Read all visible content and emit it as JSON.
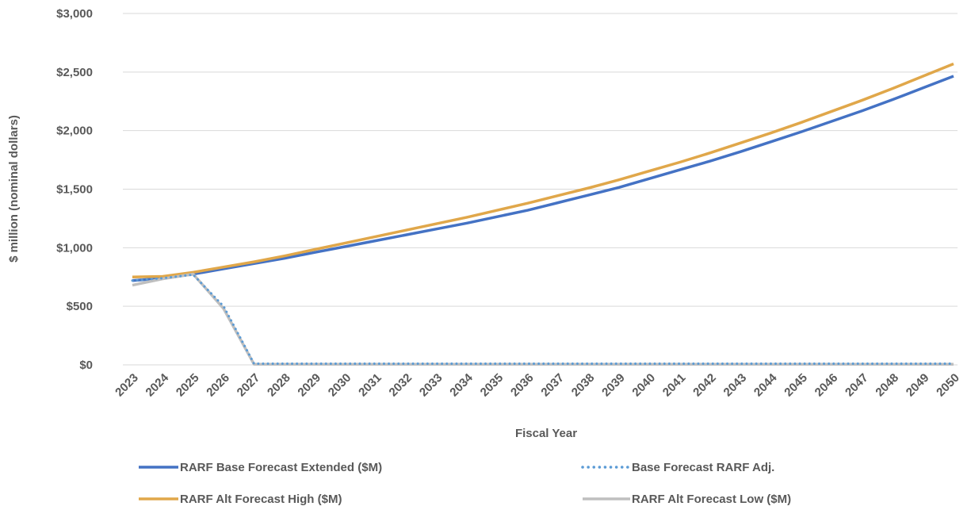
{
  "chart_data": {
    "type": "line",
    "xlabel": "Fiscal Year",
    "ylabel": "$ million (nominal dollars)",
    "ylim": [
      0,
      3000
    ],
    "yticks": [
      0,
      500,
      1000,
      1500,
      2000,
      2500,
      3000
    ],
    "ytick_labels": [
      "$0",
      "$500",
      "$1,000",
      "$1,500",
      "$2,000",
      "$2,500",
      "$3,000"
    ],
    "grid": "horizontal",
    "legend_position": "bottom",
    "x": [
      "2023",
      "2024",
      "2025",
      "2026",
      "2027",
      "2028",
      "2029",
      "2030",
      "2031",
      "2032",
      "2033",
      "2034",
      "2035",
      "2036",
      "2037",
      "2038",
      "2039",
      "2040",
      "2041",
      "2042",
      "2043",
      "2044",
      "2045",
      "2046",
      "2047",
      "2048",
      "2049",
      "2050"
    ],
    "series": [
      {
        "name": "RARF Base Forecast Extended ($M)",
        "color": "#4472C4",
        "style": "solid",
        "values": [
          720,
          740,
          775,
          820,
          865,
          910,
          960,
          1010,
          1060,
          1110,
          1160,
          1210,
          1265,
          1320,
          1385,
          1450,
          1515,
          1590,
          1665,
          1740,
          1820,
          1905,
          1990,
          2080,
          2170,
          2265,
          2365,
          2465
        ]
      },
      {
        "name": "Base Forecast RARF Adj.",
        "color": "#5B9BD5",
        "style": "dotted",
        "values": [
          720,
          740,
          770,
          500,
          10,
          10,
          10,
          10,
          10,
          10,
          10,
          10,
          10,
          10,
          10,
          10,
          10,
          10,
          10,
          10,
          10,
          10,
          10,
          10,
          10,
          10,
          10,
          10
        ]
      },
      {
        "name": "RARF Alt Forecast High ($M)",
        "color": "#E0A74A",
        "style": "solid",
        "values": [
          750,
          755,
          790,
          835,
          880,
          930,
          985,
          1040,
          1095,
          1150,
          1205,
          1260,
          1320,
          1380,
          1445,
          1510,
          1580,
          1655,
          1730,
          1810,
          1895,
          1980,
          2070,
          2165,
          2260,
          2360,
          2465,
          2570
        ]
      },
      {
        "name": "RARF Alt Forecast Low ($M)",
        "color": "#BFBFBF",
        "style": "solid",
        "values": [
          680,
          735,
          775,
          480,
          5,
          5,
          5,
          5,
          5,
          5,
          5,
          5,
          5,
          5,
          5,
          5,
          5,
          5,
          5,
          5,
          5,
          5,
          5,
          5,
          5,
          5,
          5,
          5
        ]
      }
    ]
  }
}
